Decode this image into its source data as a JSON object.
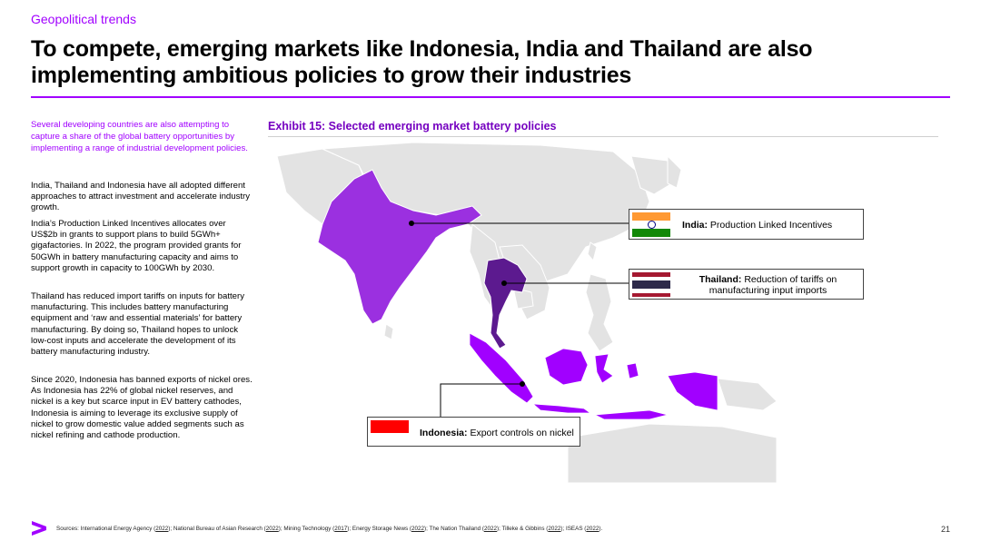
{
  "header": {
    "section_label": "Geopolitical trends",
    "title": "To compete, emerging markets like Indonesia, India and Thailand are also implementing ambitious policies to grow their industries"
  },
  "left_column": {
    "intro": "Several developing countries are also attempting to capture a share of the global battery opportunities by implementing a range of industrial development policies.",
    "paragraphs": [
      "India, Thailand and Indonesia have all adopted different approaches to attract investment and accelerate industry growth.",
      "India’s Production Linked Incentives allocates over US$2b in grants to support plans to build 5GWh+ gigafactories. In 2022, the program provided grants for 50GWh in battery manufacturing capacity and aims to support growth in capacity to 100GWh by 2030.",
      "Thailand has reduced import tariffs on inputs for battery manufacturing. This includes battery manufacturing equipment and ‘raw and essential materials’ for battery manufacturing. By doing so, Thailand hopes to unlock low-cost inputs and accelerate the development of its battery manufacturing industry.",
      "Since 2020, Indonesia has banned exports of nickel ores. As Indonesia has 22% of global nickel reserves, and nickel is a key but scarce input in EV battery cathodes, Indonesia is aiming to leverage its exclusive supply of nickel to grow domestic value added segments such as nickel refining and cathode production."
    ]
  },
  "exhibit": {
    "title": "Exhibit 15: Selected emerging market battery policies",
    "callouts": {
      "india": {
        "country": "India:",
        "policy": "Production Linked Incentives"
      },
      "thailand": {
        "country": "Thailand:",
        "policy": "Reduction of tariffs on manufacturing input imports"
      },
      "indonesia": {
        "country": "Indonesia:",
        "policy": "Export controls on nickel"
      }
    },
    "colors": {
      "india": "#9b30e0",
      "thailand": "#5c1a8f",
      "indonesia": "#a100ff",
      "land": "#e3e3e3",
      "border": "#ffffff"
    }
  },
  "footer": {
    "sources_prefix": "Sources: ",
    "sources": [
      {
        "name": "International Energy Agency",
        "year": "2022"
      },
      {
        "name": "National Bureau of Asian Research",
        "year": "2022"
      },
      {
        "name": "Mining Technology",
        "year": "2017"
      },
      {
        "name": "Energy Storage News",
        "year": "2022"
      },
      {
        "name": "The Nation Thailand",
        "year": "2022"
      },
      {
        "name": "Tilleke & Gibbins",
        "year": "2022"
      },
      {
        "name": "ISEAS",
        "year": "2022"
      }
    ],
    "page_number": "21"
  },
  "brand": {
    "accent": "#a100ff",
    "logo_name": "greater-than-logo"
  }
}
